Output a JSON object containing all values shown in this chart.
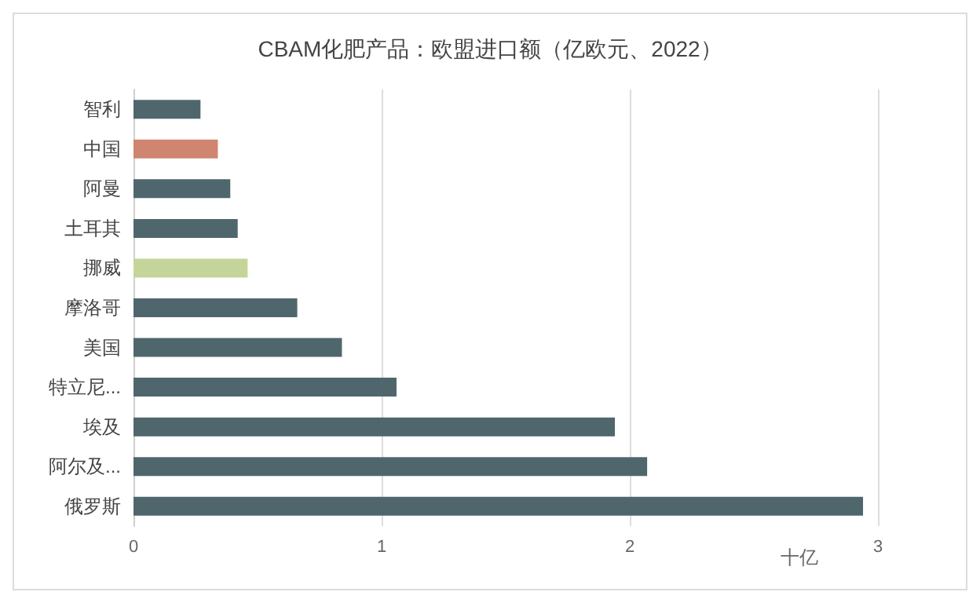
{
  "chart_data": {
    "type": "bar",
    "orientation": "horizontal",
    "title": "CBAM化肥产品：欧盟进口额（亿欧元、2022）",
    "xlabel": "十亿",
    "categories": [
      "智利",
      "中国",
      "阿曼",
      "土耳其",
      "挪威",
      "摩洛哥",
      "美国",
      "特立尼...",
      "埃及",
      "阿尔及...",
      "俄罗斯"
    ],
    "values": [
      0.27,
      0.34,
      0.39,
      0.42,
      0.46,
      0.66,
      0.84,
      1.06,
      1.94,
      2.07,
      2.94
    ],
    "colors": [
      "#4f666c",
      "#d08570",
      "#4f666c",
      "#4f666c",
      "#c5d59a",
      "#4f666c",
      "#4f666c",
      "#4f666c",
      "#4f666c",
      "#4f666c",
      "#4f666c"
    ],
    "xlim": [
      0,
      3
    ],
    "xticks": [
      0,
      1,
      2,
      3
    ],
    "grid": "x"
  }
}
